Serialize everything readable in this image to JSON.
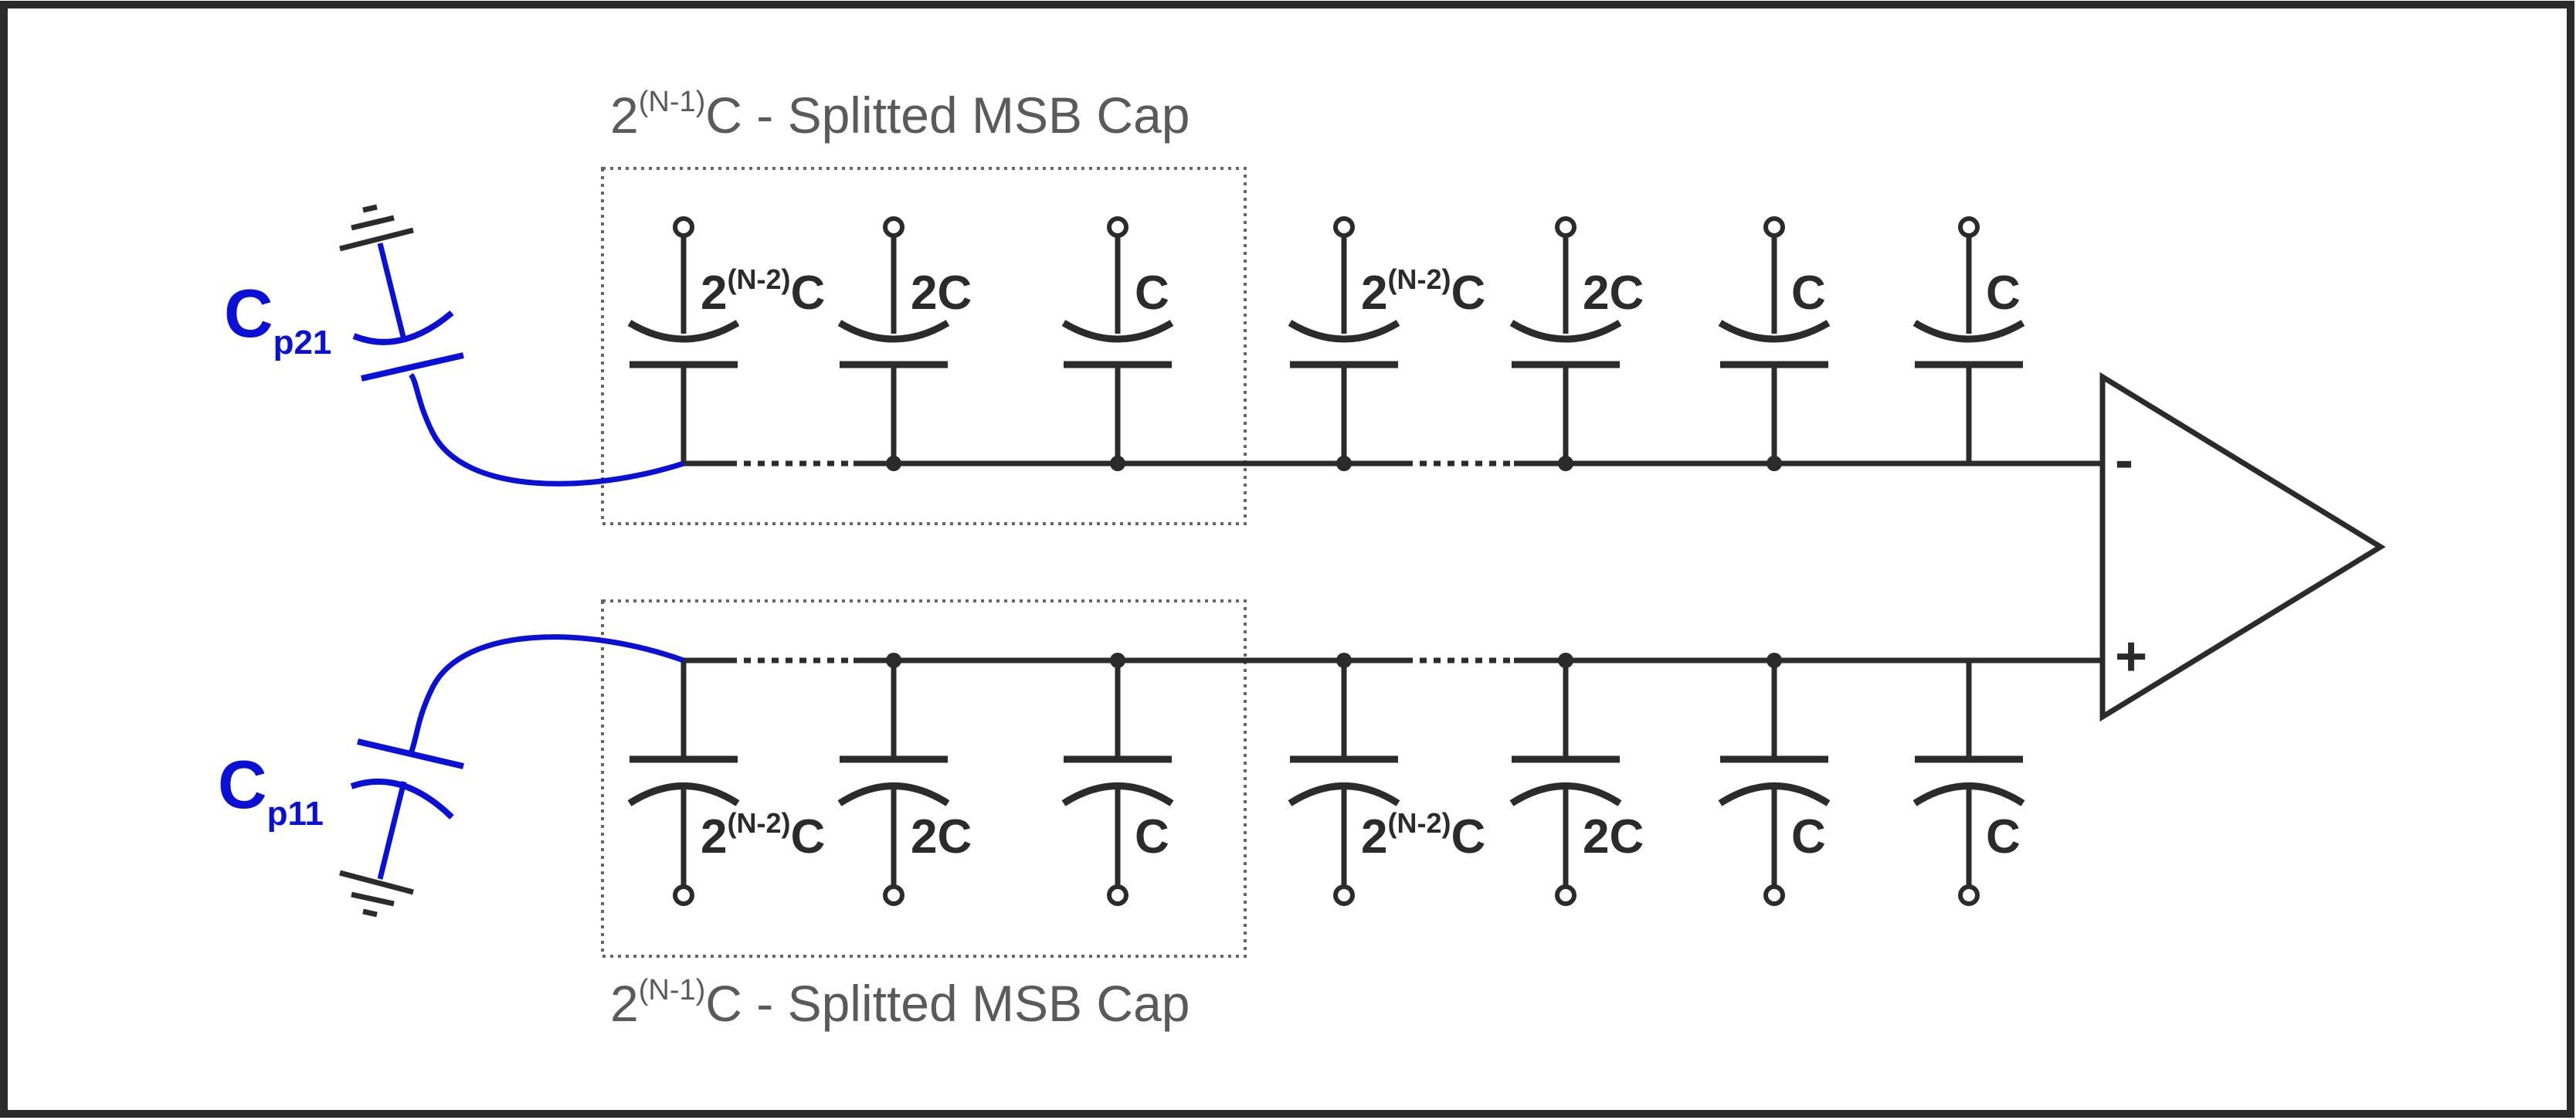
{
  "colors": {
    "wire": "#2b2b2b",
    "parasitic": "#0a10d6",
    "group_label": "#5a5a5a",
    "background": "#ffffff"
  },
  "groups": {
    "top": {
      "label_base": "2",
      "label_sup": "(N-1)",
      "label_rest": "C - Splitted MSB Cap"
    },
    "bottom": {
      "label_base": "2",
      "label_sup": "(N-1)",
      "label_rest": "C - Splitted MSB Cap"
    }
  },
  "parasitics": {
    "top": {
      "main": "C",
      "sub": "p21"
    },
    "bottom": {
      "main": "C",
      "sub": "p11"
    }
  },
  "comparator": {
    "minus": "-",
    "plus": "+"
  },
  "top_caps": [
    {
      "base": "2",
      "sup": "(N-2)",
      "rest": "C"
    },
    {
      "base": "2C",
      "sup": "",
      "rest": ""
    },
    {
      "base": "C",
      "sup": "",
      "rest": ""
    },
    {
      "base": "2",
      "sup": "(N-2)",
      "rest": "C"
    },
    {
      "base": "2C",
      "sup": "",
      "rest": ""
    },
    {
      "base": "C",
      "sup": "",
      "rest": ""
    },
    {
      "base": "C",
      "sup": "",
      "rest": ""
    }
  ],
  "bottom_caps": [
    {
      "base": "2",
      "sup": "(N-2)",
      "rest": "C"
    },
    {
      "base": "2C",
      "sup": "",
      "rest": ""
    },
    {
      "base": "C",
      "sup": "",
      "rest": ""
    },
    {
      "base": "2",
      "sup": "(N-2)",
      "rest": "C"
    },
    {
      "base": "2C",
      "sup": "",
      "rest": ""
    },
    {
      "base": "C",
      "sup": "",
      "rest": ""
    },
    {
      "base": "C",
      "sup": "",
      "rest": ""
    }
  ]
}
